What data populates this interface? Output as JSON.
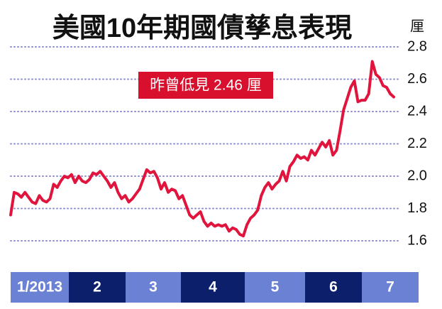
{
  "chart_data": {
    "type": "line",
    "title": "美國10年期國債孳息表現",
    "y_unit": "厘",
    "annotation": "昨曾低見 2.46 厘",
    "months": [
      "1/2013",
      "2",
      "3",
      "4",
      "5",
      "6",
      "7"
    ],
    "month_colors": [
      "#6b82d4",
      "#0b1f6b",
      "#6b82d4",
      "#0b1f6b",
      "#6b82d4",
      "#0b1f6b",
      "#6b82d4"
    ],
    "color": "#e0143c",
    "values": [
      1.76,
      1.9,
      1.89,
      1.87,
      1.9,
      1.87,
      1.84,
      1.83,
      1.88,
      1.85,
      1.84,
      1.86,
      1.95,
      1.93,
      1.97,
      2.0,
      1.99,
      2.01,
      1.96,
      2.0,
      1.97,
      1.96,
      1.98,
      2.02,
      2.01,
      2.03,
      2.0,
      1.97,
      1.93,
      1.96,
      1.9,
      1.86,
      1.88,
      1.84,
      1.86,
      1.89,
      1.92,
      1.98,
      2.04,
      2.02,
      2.03,
      1.99,
      1.92,
      1.96,
      1.9,
      1.92,
      1.91,
      1.86,
      1.88,
      1.82,
      1.76,
      1.74,
      1.76,
      1.78,
      1.72,
      1.69,
      1.71,
      1.69,
      1.7,
      1.69,
      1.7,
      1.66,
      1.68,
      1.67,
      1.64,
      1.63,
      1.7,
      1.74,
      1.76,
      1.79,
      1.88,
      1.93,
      1.96,
      1.92,
      1.95,
      1.97,
      2.03,
      1.97,
      2.06,
      2.09,
      2.13,
      2.11,
      2.12,
      2.1,
      2.16,
      2.13,
      2.17,
      2.21,
      2.18,
      2.22,
      2.13,
      2.16,
      2.28,
      2.41,
      2.48,
      2.55,
      2.59,
      2.46,
      2.47,
      2.47,
      2.51,
      2.71,
      2.63,
      2.61,
      2.56,
      2.55,
      2.51,
      2.49
    ],
    "ylim": [
      1.6,
      2.8
    ],
    "yticks": [
      {
        "value": 1.6,
        "label": "1.6"
      },
      {
        "value": 1.8,
        "label": "1.8"
      },
      {
        "value": 2.0,
        "label": "2.0"
      },
      {
        "value": 2.2,
        "label": "2.2"
      },
      {
        "value": 2.4,
        "label": "2.4"
      },
      {
        "value": 2.6,
        "label": "2.6"
      },
      {
        "value": 2.8,
        "label": "2.8"
      }
    ],
    "grid": true
  }
}
